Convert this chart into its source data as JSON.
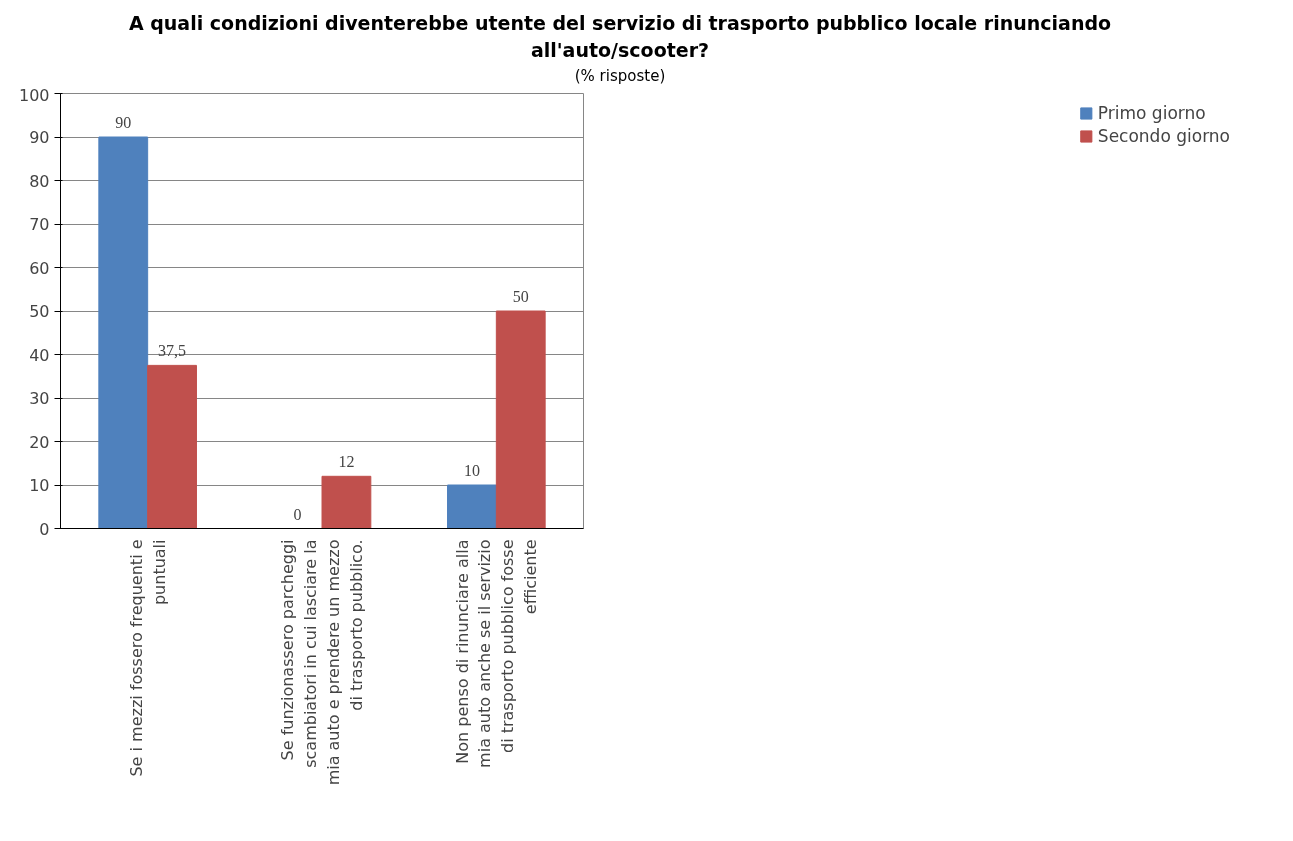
{
  "chart_data": {
    "type": "bar",
    "title": "A quali condizioni diventerebbe utente del servizio di trasporto pubblico locale rinunciando all'auto/scooter?",
    "subtitle": "(% risposte)",
    "categories": [
      "Se i mezzi fossero frequenti e puntuali",
      "Se funzionassero parcheggi scambiatori in cui lasciare la mia auto e prendere un mezzo di trasporto pubblico.",
      "Non penso di rinunciare alla mia auto anche se il servizio di trasporto pubblico fosse efficiente"
    ],
    "series": [
      {
        "name": "Primo giorno",
        "color": "#4f81bd",
        "values": [
          90,
          0,
          10
        ],
        "value_labels": [
          "90",
          "0",
          "10"
        ]
      },
      {
        "name": "Secondo giorno",
        "color": "#c0504d",
        "values": [
          37.5,
          12,
          50
        ],
        "value_labels": [
          "37,5",
          "12",
          "50"
        ]
      }
    ],
    "ylim": [
      0,
      100
    ],
    "yticks": [
      0,
      10,
      20,
      30,
      40,
      50,
      60,
      70,
      80,
      90,
      100
    ],
    "grid": "y",
    "legend": "right"
  }
}
